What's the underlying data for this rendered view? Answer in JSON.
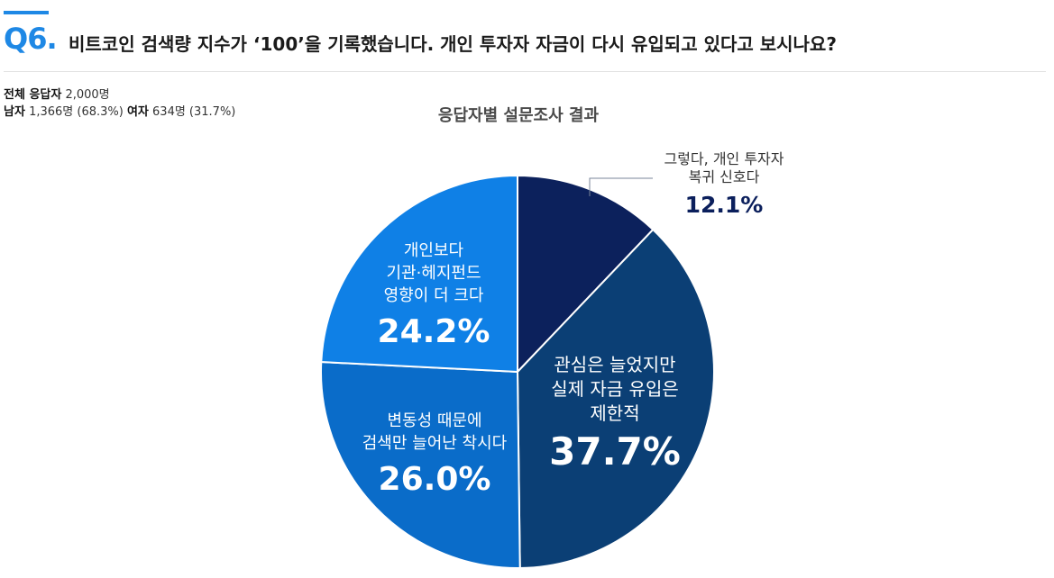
{
  "question": {
    "number": "Q6.",
    "text": "비트코인 검색량 지수가 ‘100’을 기록했습니다. 개인 투자자 자금이 다시 유입되고 있다고 보시나요?"
  },
  "respondents": {
    "total_label": "전체 응답자",
    "total_value": "2,000명",
    "male_label": "남자",
    "male_value": "1,366명 (68.3%)",
    "female_label": "여자",
    "female_value": "634명 (31.7%)"
  },
  "colors": {
    "accent": "#1e88e5",
    "navy": "#0b1f5c",
    "slice_dark_blue": "#0b3f75",
    "slice_mid_blue": "#0a6cc9",
    "slice_light_blue": "#0f80e6"
  },
  "chart_data": {
    "type": "pie",
    "title": "응답자별 설문조사 결과",
    "slices": [
      {
        "label_lines": [
          "그렇다, 개인 투자자",
          "복귀 신호다"
        ],
        "value": 12.1,
        "value_label": "12.1%",
        "color": "#0c215c"
      },
      {
        "label_lines": [
          "관심은 늘었지만",
          "실제 자금 유입은",
          "제한적"
        ],
        "value": 37.7,
        "value_label": "37.7%",
        "color": "#0b3f75"
      },
      {
        "label_lines": [
          "변동성 때문에",
          "검색만 늘어난 착시다"
        ],
        "value": 26.0,
        "value_label": "26.0%",
        "color": "#0a6cc9"
      },
      {
        "label_lines": [
          "개인보다",
          "기관·헤지펀드",
          "영향이 더 크다"
        ],
        "value": 24.2,
        "value_label": "24.2%",
        "color": "#0f80e6"
      }
    ]
  }
}
